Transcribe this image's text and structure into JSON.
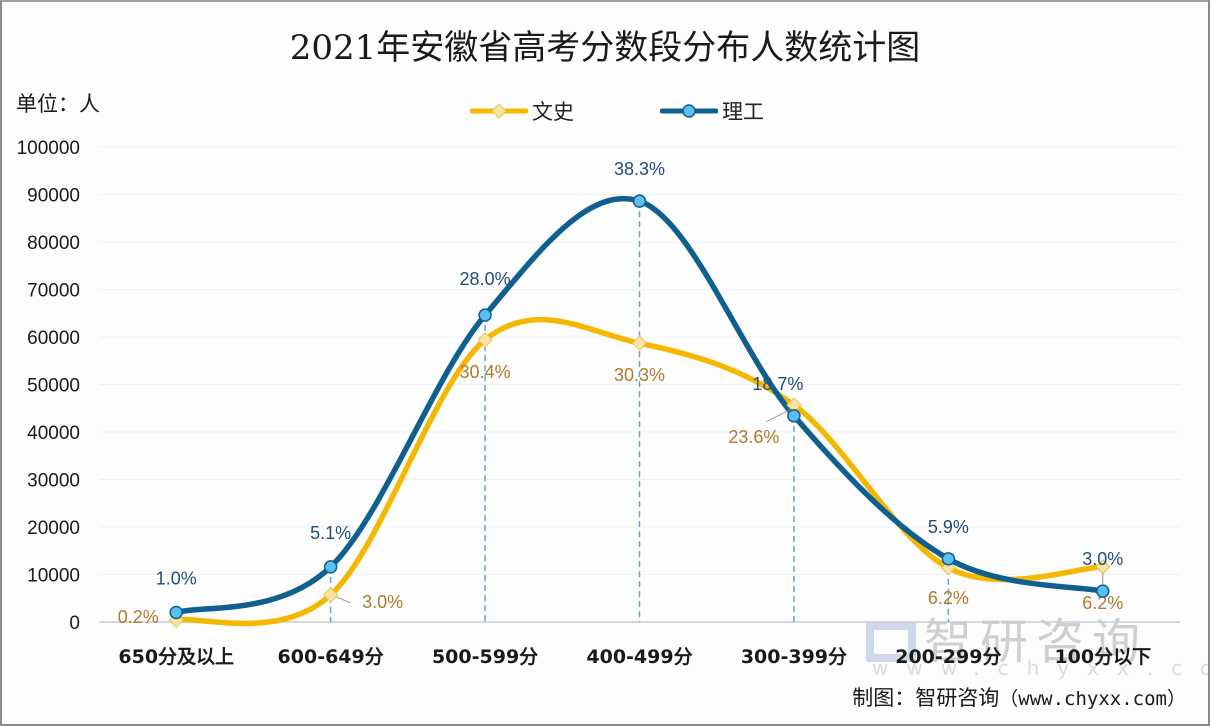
{
  "chart_data": {
    "type": "line",
    "title": "2021年安徽省高考分数段分布人数统计图",
    "unit_label": "单位：人",
    "xlabel": "",
    "ylabel": "",
    "ylim": [
      0,
      100000
    ],
    "yticks": [
      "0",
      "10000",
      "20000",
      "30000",
      "40000",
      "50000",
      "60000",
      "70000",
      "80000",
      "90000",
      "100000"
    ],
    "grid": true,
    "smooth": true,
    "legend_position": "top-center",
    "categories": [
      "650分及以上",
      "600-649分",
      "500-599分",
      "400-499分",
      "300-399分",
      "200-299分",
      "100分以下"
    ],
    "series": [
      {
        "name": "文史",
        "color": "#f5b800",
        "marker": "diamond",
        "values": [
          400,
          5700,
          59400,
          58700,
          45700,
          11400,
          11600
        ],
        "labels": [
          "0.2%",
          "3.0%",
          "30.4%",
          "30.3%",
          "23.6%",
          "6.2%",
          "6.2%"
        ],
        "label_color": "#b07a2a"
      },
      {
        "name": "理工",
        "color": "#0f5f8f",
        "marker": "circle",
        "values": [
          2000,
          11600,
          64600,
          88600,
          43400,
          13300,
          6500
        ],
        "labels": [
          "1.0%",
          "5.1%",
          "28.0%",
          "38.3%",
          "18.7%",
          "5.9%",
          "3.0%"
        ],
        "label_color": "#1f4e79"
      }
    ]
  },
  "credit": {
    "prefix": "制图：智研咨询",
    "url": "（www.chyxx.com）"
  },
  "watermark": {
    "text": "智研咨询",
    "url": "www.chyxx.com"
  }
}
